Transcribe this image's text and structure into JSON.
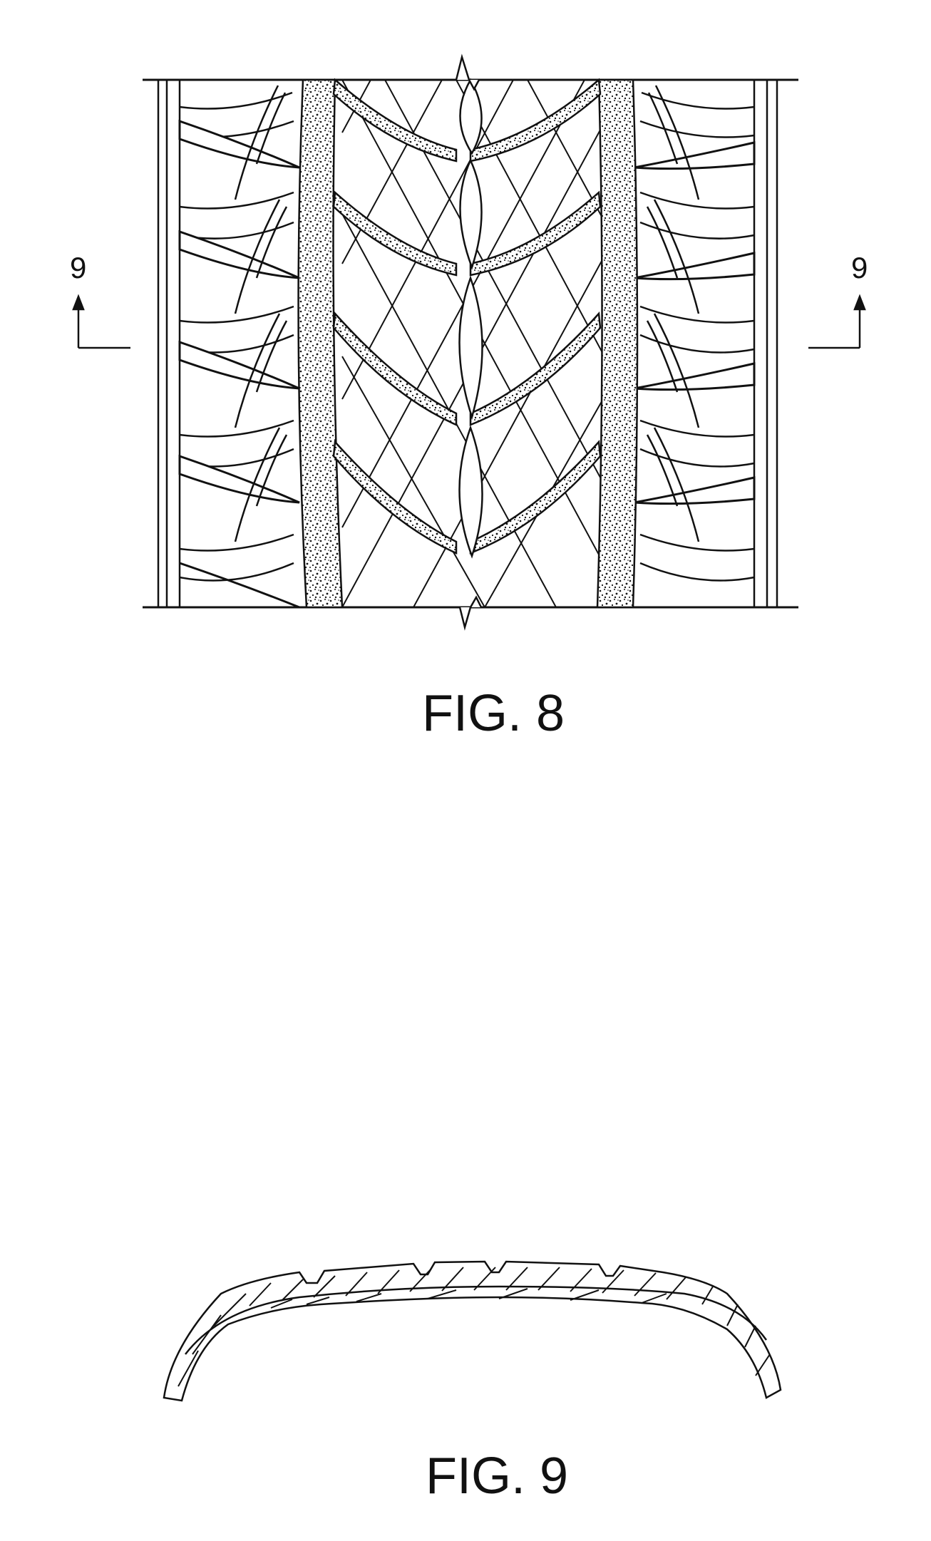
{
  "figures": {
    "fig8": {
      "caption": "FIG. 8",
      "section_left_label": "9",
      "section_right_label": "9"
    },
    "fig9": {
      "caption": "FIG. 9"
    }
  },
  "style": {
    "ink": "#111111",
    "paper": "#ffffff"
  }
}
